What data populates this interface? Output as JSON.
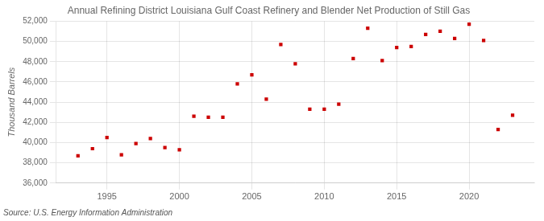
{
  "chart_data": {
    "type": "scatter",
    "title": "Annual Refining District Louisiana Gulf Coast Refinery and Blender Net Production of Still Gas",
    "ylabel": "Thousand Barrels",
    "source": "Source: U.S. Energy Information Administration",
    "x": [
      1993,
      1994,
      1995,
      1996,
      1997,
      1998,
      1999,
      2000,
      2001,
      2002,
      2003,
      2004,
      2005,
      2006,
      2007,
      2008,
      2009,
      2010,
      2011,
      2012,
      2013,
      2014,
      2015,
      2016,
      2017,
      2018,
      2019,
      2020,
      2021,
      2022,
      2023
    ],
    "values": [
      38700,
      39400,
      40500,
      38800,
      39900,
      40400,
      39500,
      39300,
      42600,
      42500,
      42500,
      45800,
      46700,
      44300,
      49700,
      47800,
      43300,
      43300,
      43800,
      48300,
      51300,
      48100,
      49400,
      49500,
      50700,
      51000,
      50300,
      51700,
      50100,
      41300,
      42700
    ],
    "color": "#cc0000",
    "marker": "square",
    "xlim": [
      1991.5,
      2024.5
    ],
    "xticks": [
      1995,
      2000,
      2005,
      2010,
      2015,
      2020
    ],
    "ylim": [
      36000,
      52000
    ],
    "yticks": [
      {
        "value": 36000,
        "label": "36,000"
      },
      {
        "value": 38000,
        "label": "38,000"
      },
      {
        "value": 40000,
        "label": "40,000"
      },
      {
        "value": 42000,
        "label": "42,000"
      },
      {
        "value": 44000,
        "label": "44,000"
      },
      {
        "value": 46000,
        "label": "46,000"
      },
      {
        "value": 48000,
        "label": "48,000"
      },
      {
        "value": 50000,
        "label": "50,000"
      },
      {
        "value": 52000,
        "label": "52,000"
      }
    ],
    "grid": true
  }
}
